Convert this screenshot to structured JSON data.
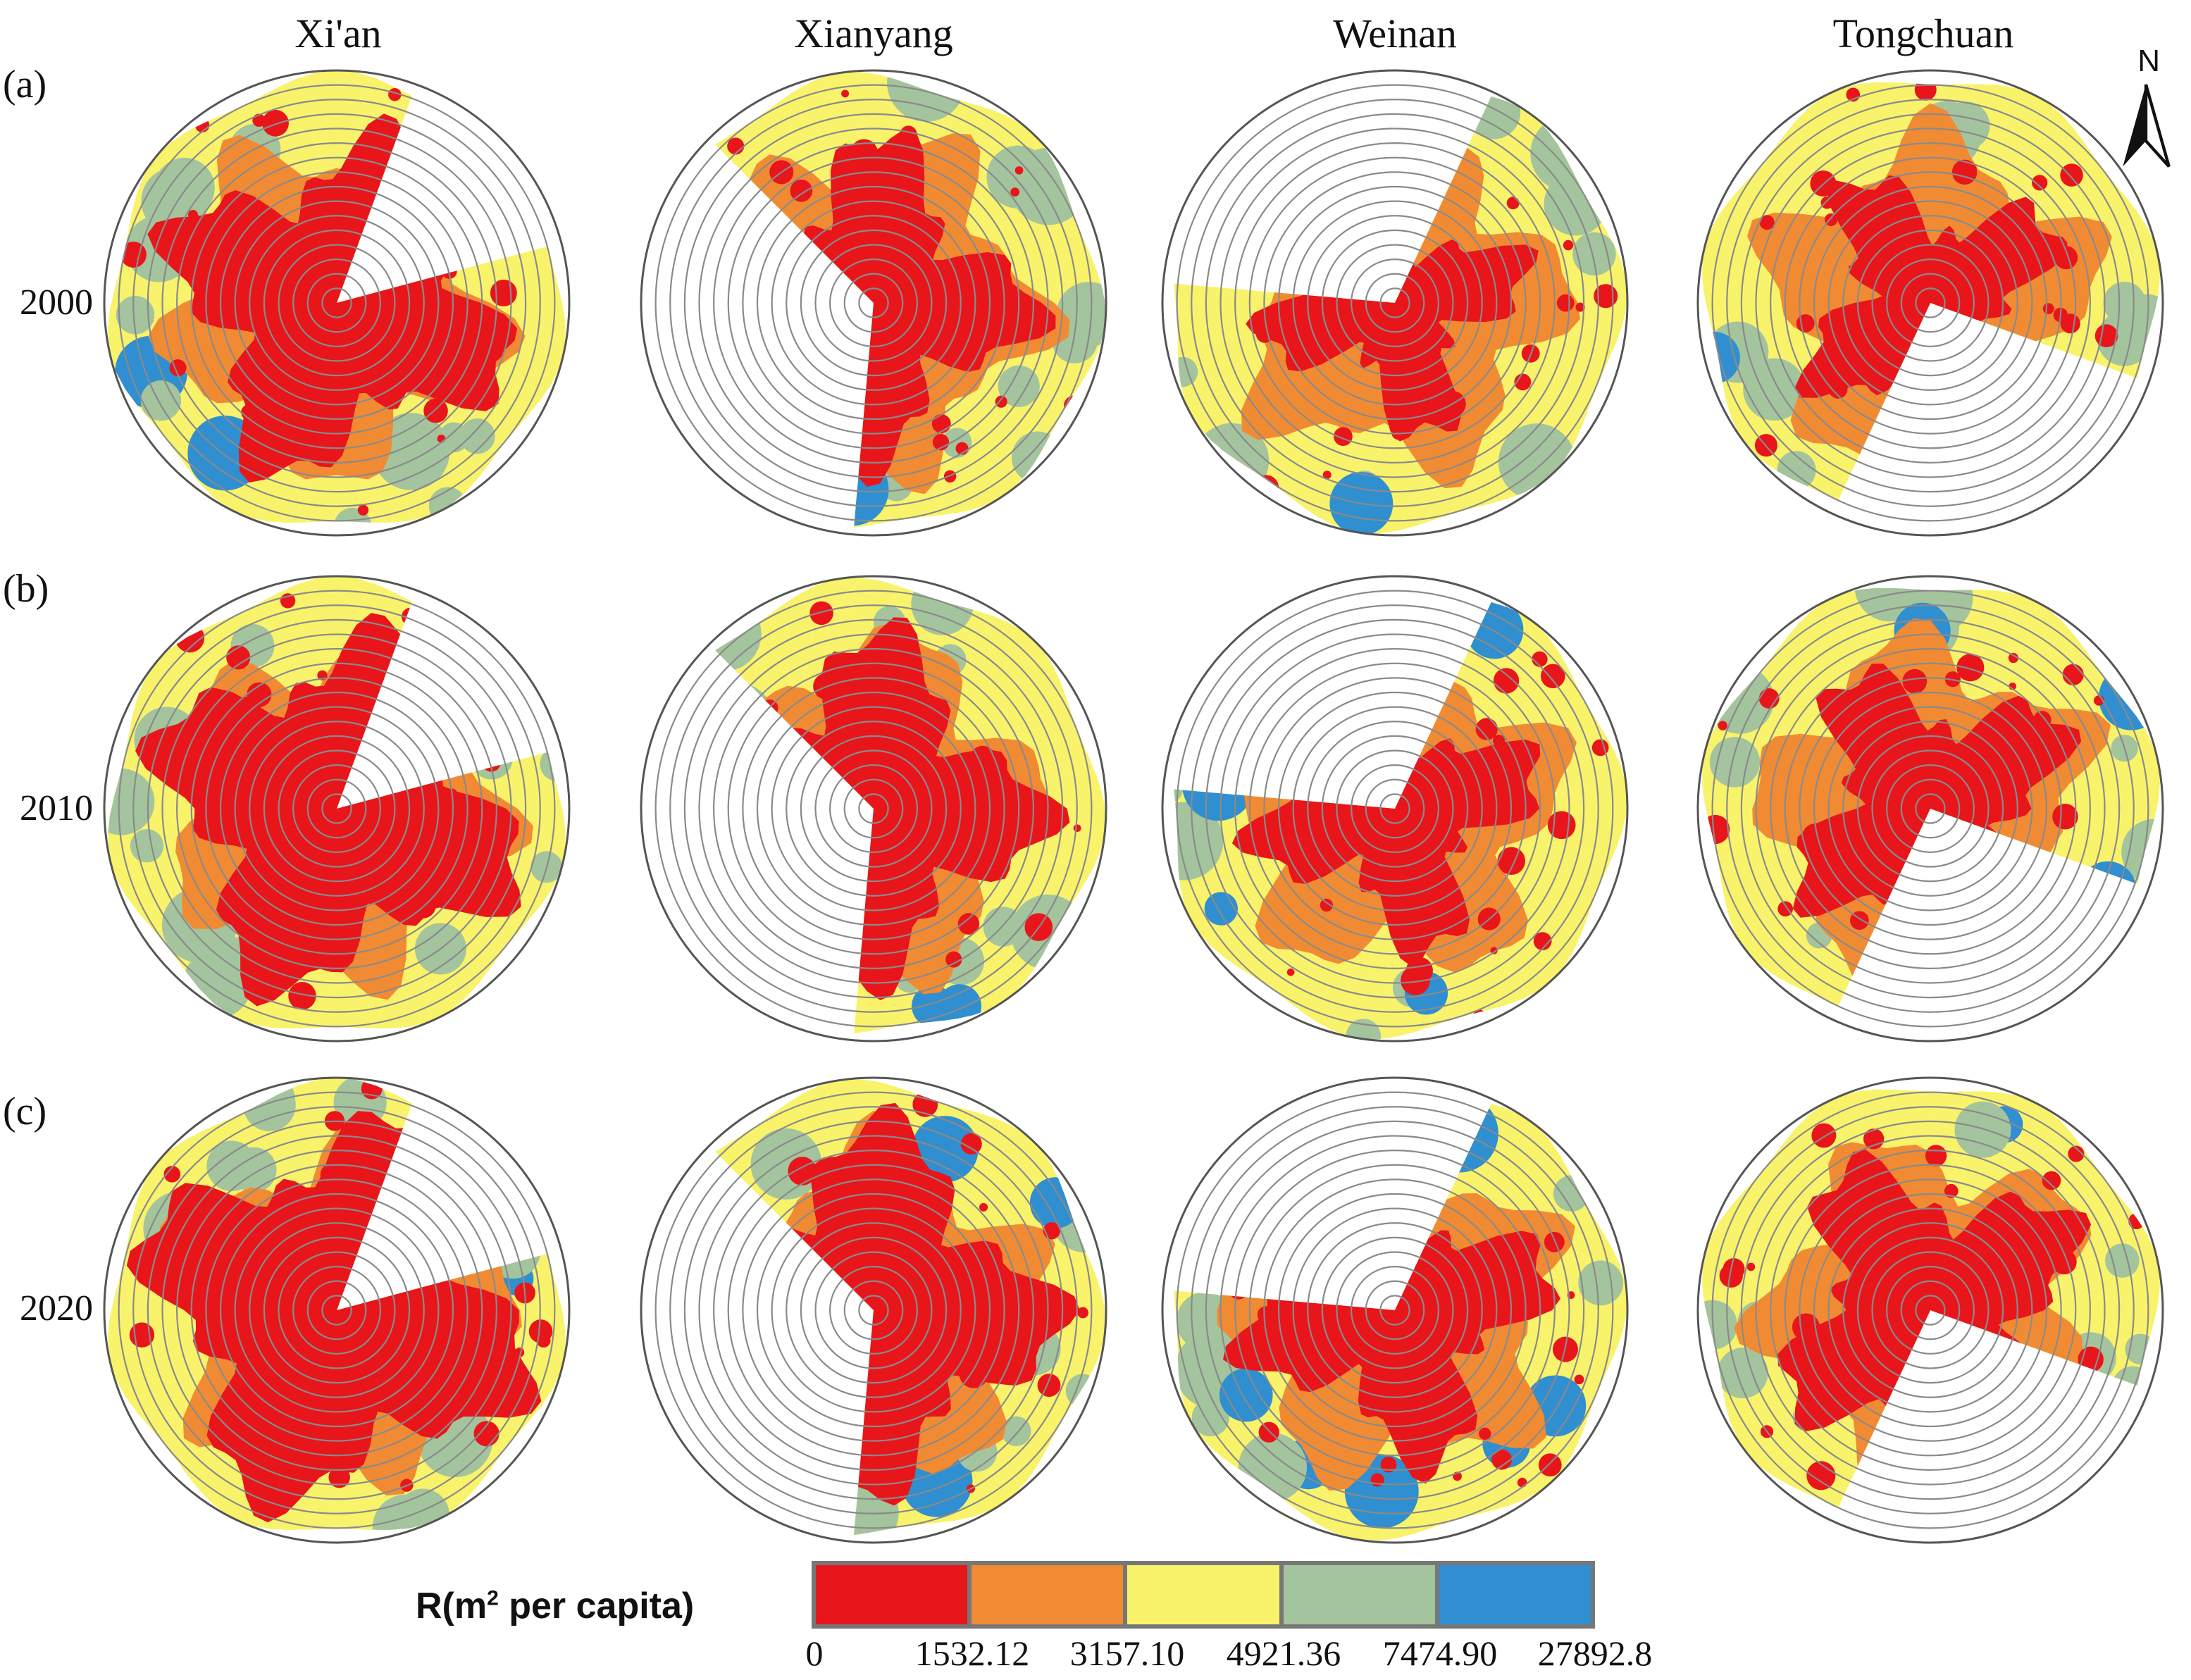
{
  "columns": [
    "Xi'an",
    "Xianyang",
    "Weinan",
    "Tongchuan"
  ],
  "rows": [
    {
      "tag": "(a)",
      "year": "2000"
    },
    {
      "tag": "(b)",
      "year": "2010"
    },
    {
      "tag": "(c)",
      "year": "2020"
    }
  ],
  "north_label": "N",
  "legend": {
    "title": "R(m",
    "title_sup": "2",
    "title_tail": " per capita)",
    "classes": [
      {
        "color": "#e8151b"
      },
      {
        "color": "#f18b33"
      },
      {
        "color": "#f9f36c"
      },
      {
        "color": "#a4c49d"
      },
      {
        "color": "#2f8fd0"
      }
    ],
    "breaks": [
      "0",
      "1532.12",
      "3157.10",
      "4921.36",
      "7474.90",
      "27892.8"
    ]
  },
  "colors": {
    "red": "#e8151b",
    "orange": "#f18b33",
    "yellow": "#f9f36c",
    "green": "#a4c49d",
    "blue": "#2f8fd0",
    "ring": "#8a8a8a"
  }
}
